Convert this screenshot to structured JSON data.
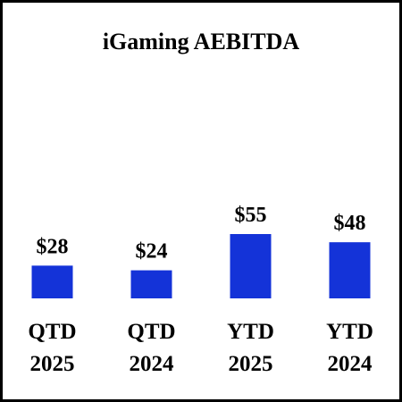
{
  "chart_data": {
    "type": "bar",
    "title": "iGaming AEBITDA",
    "categories": [
      [
        "QTD",
        "2025"
      ],
      [
        "QTD",
        "2024"
      ],
      [
        "YTD",
        "2025"
      ],
      [
        "YTD",
        "2024"
      ]
    ],
    "values": [
      28,
      24,
      55,
      48
    ],
    "value_labels": [
      "$28",
      "$24",
      "$55",
      "$48"
    ],
    "color": "#1433d8"
  }
}
